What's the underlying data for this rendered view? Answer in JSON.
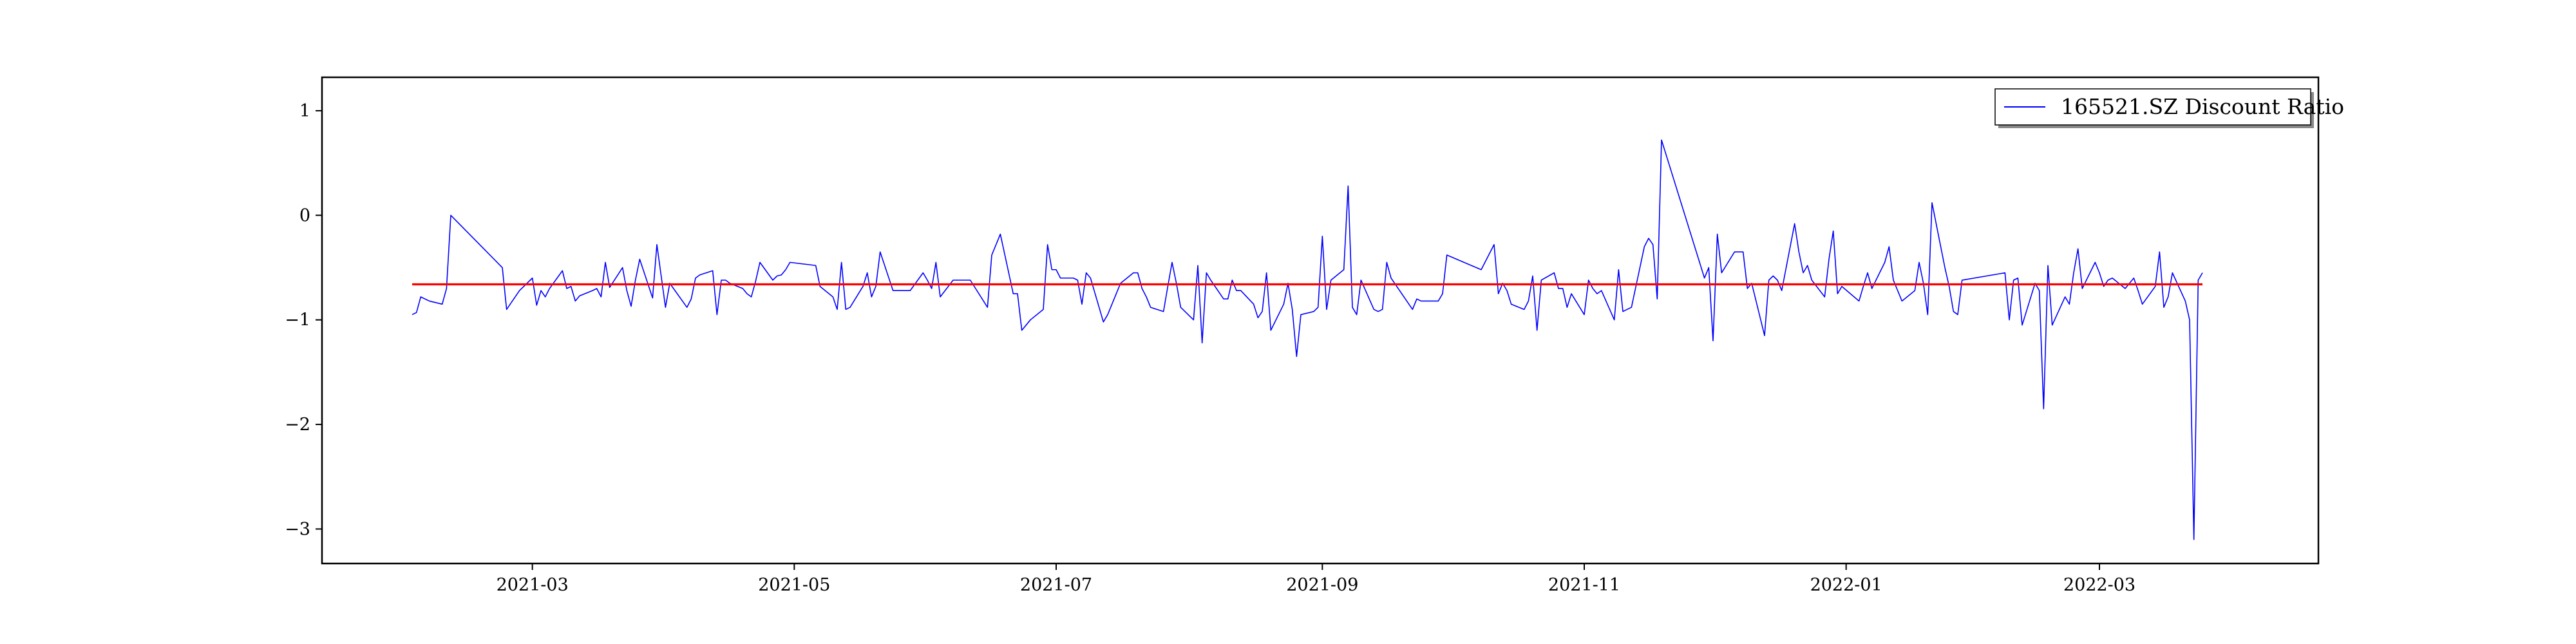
{
  "chart_data": {
    "type": "line",
    "title": "",
    "xlabel": "",
    "ylabel": "",
    "x_axis": {
      "type": "date",
      "range": [
        "2021-01-11",
        "2022-04-21"
      ],
      "ticks": [
        "2021-03-01",
        "2021-05-01",
        "2021-07-01",
        "2021-09-01",
        "2021-11-01",
        "2022-01-01",
        "2022-03-01"
      ],
      "tick_labels": [
        "2021-03",
        "2021-05",
        "2021-07",
        "2021-09",
        "2021-11",
        "2022-01",
        "2022-03"
      ]
    },
    "y_axis": {
      "range": [
        -3.33,
        1.32
      ],
      "ticks": [
        -3,
        -2,
        -1,
        0,
        1
      ],
      "tick_labels": [
        "−3",
        "−2",
        "−1",
        "0",
        "1"
      ]
    },
    "grid": false,
    "legend_position": "top-right",
    "series": [
      {
        "name": "165521.SZ Discount Ratio",
        "color": "#0000ff",
        "points": [
          [
            "2021-02-01",
            -0.95
          ],
          [
            "2021-02-02",
            -0.93
          ],
          [
            "2021-02-03",
            -0.78
          ],
          [
            "2021-02-05",
            -0.82
          ],
          [
            "2021-02-08",
            -0.85
          ],
          [
            "2021-02-09",
            -0.7
          ],
          [
            "2021-02-10",
            0.0
          ],
          [
            "2021-02-22",
            -0.5
          ],
          [
            "2021-02-23",
            -0.9
          ],
          [
            "2021-02-26",
            -0.72
          ],
          [
            "2021-03-01",
            -0.6
          ],
          [
            "2021-03-02",
            -0.86
          ],
          [
            "2021-03-03",
            -0.72
          ],
          [
            "2021-03-04",
            -0.78
          ],
          [
            "2021-03-05",
            -0.7
          ],
          [
            "2021-03-08",
            -0.53
          ],
          [
            "2021-03-09",
            -0.7
          ],
          [
            "2021-03-10",
            -0.68
          ],
          [
            "2021-03-11",
            -0.82
          ],
          [
            "2021-03-12",
            -0.77
          ],
          [
            "2021-03-15",
            -0.72
          ],
          [
            "2021-03-16",
            -0.7
          ],
          [
            "2021-03-17",
            -0.78
          ],
          [
            "2021-03-18",
            -0.45
          ],
          [
            "2021-03-19",
            -0.69
          ],
          [
            "2021-03-22",
            -0.5
          ],
          [
            "2021-03-23",
            -0.72
          ],
          [
            "2021-03-24",
            -0.87
          ],
          [
            "2021-03-25",
            -0.62
          ],
          [
            "2021-03-26",
            -0.42
          ],
          [
            "2021-03-29",
            -0.79
          ],
          [
            "2021-03-30",
            -0.28
          ],
          [
            "2021-03-31",
            -0.58
          ],
          [
            "2021-04-01",
            -0.88
          ],
          [
            "2021-04-02",
            -0.65
          ],
          [
            "2021-04-06",
            -0.88
          ],
          [
            "2021-04-07",
            -0.8
          ],
          [
            "2021-04-08",
            -0.6
          ],
          [
            "2021-04-09",
            -0.57
          ],
          [
            "2021-04-12",
            -0.53
          ],
          [
            "2021-04-13",
            -0.95
          ],
          [
            "2021-04-14",
            -0.62
          ],
          [
            "2021-04-15",
            -0.62
          ],
          [
            "2021-04-16",
            -0.65
          ],
          [
            "2021-04-19",
            -0.7
          ],
          [
            "2021-04-20",
            -0.75
          ],
          [
            "2021-04-21",
            -0.78
          ],
          [
            "2021-04-22",
            -0.63
          ],
          [
            "2021-04-23",
            -0.45
          ],
          [
            "2021-04-26",
            -0.62
          ],
          [
            "2021-04-27",
            -0.58
          ],
          [
            "2021-04-28",
            -0.57
          ],
          [
            "2021-04-29",
            -0.52
          ],
          [
            "2021-04-30",
            -0.45
          ],
          [
            "2021-05-06",
            -0.48
          ],
          [
            "2021-05-07",
            -0.68
          ],
          [
            "2021-05-10",
            -0.78
          ],
          [
            "2021-05-11",
            -0.9
          ],
          [
            "2021-05-12",
            -0.45
          ],
          [
            "2021-05-13",
            -0.9
          ],
          [
            "2021-05-14",
            -0.88
          ],
          [
            "2021-05-17",
            -0.68
          ],
          [
            "2021-05-18",
            -0.55
          ],
          [
            "2021-05-19",
            -0.78
          ],
          [
            "2021-05-20",
            -0.68
          ],
          [
            "2021-05-21",
            -0.35
          ],
          [
            "2021-05-24",
            -0.72
          ],
          [
            "2021-05-25",
            -0.72
          ],
          [
            "2021-05-26",
            -0.72
          ],
          [
            "2021-05-27",
            -0.72
          ],
          [
            "2021-05-28",
            -0.72
          ],
          [
            "2021-05-31",
            -0.55
          ],
          [
            "2021-06-01",
            -0.62
          ],
          [
            "2021-06-02",
            -0.7
          ],
          [
            "2021-06-03",
            -0.45
          ],
          [
            "2021-06-04",
            -0.78
          ],
          [
            "2021-06-07",
            -0.62
          ],
          [
            "2021-06-08",
            -0.62
          ],
          [
            "2021-06-09",
            -0.62
          ],
          [
            "2021-06-10",
            -0.62
          ],
          [
            "2021-06-11",
            -0.62
          ],
          [
            "2021-06-15",
            -0.88
          ],
          [
            "2021-06-16",
            -0.38
          ],
          [
            "2021-06-17",
            -0.28
          ],
          [
            "2021-06-18",
            -0.18
          ],
          [
            "2021-06-21",
            -0.75
          ],
          [
            "2021-06-22",
            -0.75
          ],
          [
            "2021-06-23",
            -1.1
          ],
          [
            "2021-06-24",
            -1.05
          ],
          [
            "2021-06-25",
            -1.0
          ],
          [
            "2021-06-28",
            -0.9
          ],
          [
            "2021-06-29",
            -0.28
          ],
          [
            "2021-06-30",
            -0.52
          ],
          [
            "2021-07-01",
            -0.52
          ],
          [
            "2021-07-02",
            -0.6
          ],
          [
            "2021-07-05",
            -0.6
          ],
          [
            "2021-07-06",
            -0.62
          ],
          [
            "2021-07-07",
            -0.85
          ],
          [
            "2021-07-08",
            -0.55
          ],
          [
            "2021-07-09",
            -0.6
          ],
          [
            "2021-07-12",
            -1.02
          ],
          [
            "2021-07-13",
            -0.95
          ],
          [
            "2021-07-14",
            -0.85
          ],
          [
            "2021-07-15",
            -0.75
          ],
          [
            "2021-07-16",
            -0.65
          ],
          [
            "2021-07-19",
            -0.55
          ],
          [
            "2021-07-20",
            -0.55
          ],
          [
            "2021-07-21",
            -0.7
          ],
          [
            "2021-07-22",
            -0.78
          ],
          [
            "2021-07-23",
            -0.88
          ],
          [
            "2021-07-26",
            -0.92
          ],
          [
            "2021-07-27",
            -0.68
          ],
          [
            "2021-07-28",
            -0.45
          ],
          [
            "2021-07-29",
            -0.65
          ],
          [
            "2021-07-30",
            -0.88
          ],
          [
            "2021-08-02",
            -1.0
          ],
          [
            "2021-08-03",
            -0.48
          ],
          [
            "2021-08-04",
            -1.22
          ],
          [
            "2021-08-05",
            -0.55
          ],
          [
            "2021-08-06",
            -0.62
          ],
          [
            "2021-08-09",
            -0.8
          ],
          [
            "2021-08-10",
            -0.8
          ],
          [
            "2021-08-11",
            -0.62
          ],
          [
            "2021-08-12",
            -0.72
          ],
          [
            "2021-08-13",
            -0.72
          ],
          [
            "2021-08-16",
            -0.85
          ],
          [
            "2021-08-17",
            -0.98
          ],
          [
            "2021-08-18",
            -0.92
          ],
          [
            "2021-08-19",
            -0.55
          ],
          [
            "2021-08-20",
            -1.1
          ],
          [
            "2021-08-23",
            -0.85
          ],
          [
            "2021-08-24",
            -0.65
          ],
          [
            "2021-08-25",
            -0.9
          ],
          [
            "2021-08-26",
            -1.35
          ],
          [
            "2021-08-27",
            -0.95
          ],
          [
            "2021-08-30",
            -0.92
          ],
          [
            "2021-08-31",
            -0.88
          ],
          [
            "2021-09-01",
            -0.2
          ],
          [
            "2021-09-02",
            -0.9
          ],
          [
            "2021-09-03",
            -0.62
          ],
          [
            "2021-09-06",
            -0.52
          ],
          [
            "2021-09-07",
            0.28
          ],
          [
            "2021-09-08",
            -0.88
          ],
          [
            "2021-09-09",
            -0.95
          ],
          [
            "2021-09-10",
            -0.62
          ],
          [
            "2021-09-13",
            -0.9
          ],
          [
            "2021-09-14",
            -0.92
          ],
          [
            "2021-09-15",
            -0.9
          ],
          [
            "2021-09-16",
            -0.45
          ],
          [
            "2021-09-17",
            -0.6
          ],
          [
            "2021-09-22",
            -0.9
          ],
          [
            "2021-09-23",
            -0.8
          ],
          [
            "2021-09-24",
            -0.82
          ],
          [
            "2021-09-27",
            -0.82
          ],
          [
            "2021-09-28",
            -0.82
          ],
          [
            "2021-09-29",
            -0.75
          ],
          [
            "2021-09-30",
            -0.38
          ],
          [
            "2021-10-08",
            -0.52
          ],
          [
            "2021-10-11",
            -0.28
          ],
          [
            "2021-10-12",
            -0.75
          ],
          [
            "2021-10-13",
            -0.65
          ],
          [
            "2021-10-14",
            -0.72
          ],
          [
            "2021-10-15",
            -0.85
          ],
          [
            "2021-10-18",
            -0.9
          ],
          [
            "2021-10-19",
            -0.82
          ],
          [
            "2021-10-20",
            -0.58
          ],
          [
            "2021-10-21",
            -1.1
          ],
          [
            "2021-10-22",
            -0.62
          ],
          [
            "2021-10-25",
            -0.55
          ],
          [
            "2021-10-26",
            -0.7
          ],
          [
            "2021-10-27",
            -0.7
          ],
          [
            "2021-10-28",
            -0.88
          ],
          [
            "2021-10-29",
            -0.75
          ],
          [
            "2021-11-01",
            -0.95
          ],
          [
            "2021-11-02",
            -0.62
          ],
          [
            "2021-11-03",
            -0.7
          ],
          [
            "2021-11-04",
            -0.75
          ],
          [
            "2021-11-05",
            -0.72
          ],
          [
            "2021-11-08",
            -1.0
          ],
          [
            "2021-11-09",
            -0.52
          ],
          [
            "2021-11-10",
            -0.92
          ],
          [
            "2021-11-11",
            -0.9
          ],
          [
            "2021-11-12",
            -0.88
          ],
          [
            "2021-11-15",
            -0.3
          ],
          [
            "2021-11-16",
            -0.22
          ],
          [
            "2021-11-17",
            -0.28
          ],
          [
            "2021-11-18",
            -0.8
          ],
          [
            "2021-11-19",
            0.72
          ],
          [
            "2021-11-29",
            -0.6
          ],
          [
            "2021-11-30",
            -0.5
          ],
          [
            "2021-12-01",
            -1.2
          ],
          [
            "2021-12-02",
            -0.18
          ],
          [
            "2021-12-03",
            -0.55
          ],
          [
            "2021-12-06",
            -0.35
          ],
          [
            "2021-12-07",
            -0.35
          ],
          [
            "2021-12-08",
            -0.35
          ],
          [
            "2021-12-09",
            -0.7
          ],
          [
            "2021-12-10",
            -0.65
          ],
          [
            "2021-12-13",
            -1.15
          ],
          [
            "2021-12-14",
            -0.62
          ],
          [
            "2021-12-15",
            -0.58
          ],
          [
            "2021-12-16",
            -0.62
          ],
          [
            "2021-12-17",
            -0.72
          ],
          [
            "2021-12-20",
            -0.08
          ],
          [
            "2021-12-21",
            -0.35
          ],
          [
            "2021-12-22",
            -0.55
          ],
          [
            "2021-12-23",
            -0.48
          ],
          [
            "2021-12-24",
            -0.62
          ],
          [
            "2021-12-27",
            -0.78
          ],
          [
            "2021-12-28",
            -0.42
          ],
          [
            "2021-12-29",
            -0.15
          ],
          [
            "2021-12-30",
            -0.75
          ],
          [
            "2021-12-31",
            -0.68
          ],
          [
            "2022-01-04",
            -0.82
          ],
          [
            "2022-01-05",
            -0.68
          ],
          [
            "2022-01-06",
            -0.55
          ],
          [
            "2022-01-07",
            -0.7
          ],
          [
            "2022-01-10",
            -0.45
          ],
          [
            "2022-01-11",
            -0.3
          ],
          [
            "2022-01-12",
            -0.62
          ],
          [
            "2022-01-13",
            -0.72
          ],
          [
            "2022-01-14",
            -0.82
          ],
          [
            "2022-01-17",
            -0.72
          ],
          [
            "2022-01-18",
            -0.45
          ],
          [
            "2022-01-19",
            -0.65
          ],
          [
            "2022-01-20",
            -0.95
          ],
          [
            "2022-01-21",
            0.12
          ],
          [
            "2022-01-24",
            -0.5
          ],
          [
            "2022-01-25",
            -0.68
          ],
          [
            "2022-01-26",
            -0.92
          ],
          [
            "2022-01-27",
            -0.95
          ],
          [
            "2022-01-28",
            -0.62
          ],
          [
            "2022-02-07",
            -0.55
          ],
          [
            "2022-02-08",
            -1.0
          ],
          [
            "2022-02-09",
            -0.62
          ],
          [
            "2022-02-10",
            -0.6
          ],
          [
            "2022-02-11",
            -1.05
          ],
          [
            "2022-02-14",
            -0.65
          ],
          [
            "2022-02-15",
            -0.72
          ],
          [
            "2022-02-16",
            -1.85
          ],
          [
            "2022-02-17",
            -0.48
          ],
          [
            "2022-02-18",
            -1.05
          ],
          [
            "2022-02-21",
            -0.78
          ],
          [
            "2022-02-22",
            -0.85
          ],
          [
            "2022-02-23",
            -0.55
          ],
          [
            "2022-02-24",
            -0.32
          ],
          [
            "2022-02-25",
            -0.7
          ],
          [
            "2022-02-28",
            -0.45
          ],
          [
            "2022-03-01",
            -0.55
          ],
          [
            "2022-03-02",
            -0.68
          ],
          [
            "2022-03-03",
            -0.62
          ],
          [
            "2022-03-04",
            -0.6
          ],
          [
            "2022-03-07",
            -0.7
          ],
          [
            "2022-03-08",
            -0.65
          ],
          [
            "2022-03-09",
            -0.6
          ],
          [
            "2022-03-10",
            -0.72
          ],
          [
            "2022-03-11",
            -0.85
          ],
          [
            "2022-03-14",
            -0.68
          ],
          [
            "2022-03-15",
            -0.35
          ],
          [
            "2022-03-16",
            -0.88
          ],
          [
            "2022-03-17",
            -0.78
          ],
          [
            "2022-03-18",
            -0.55
          ],
          [
            "2022-03-21",
            -0.82
          ],
          [
            "2022-03-22",
            -1.0
          ],
          [
            "2022-03-23",
            -3.1
          ],
          [
            "2022-03-24",
            -0.62
          ],
          [
            "2022-03-25",
            -0.55
          ]
        ]
      },
      {
        "name": "",
        "color": "#ff0000",
        "points": [
          [
            "2021-02-01",
            -0.66
          ],
          [
            "2022-03-25",
            -0.66
          ]
        ]
      }
    ]
  }
}
